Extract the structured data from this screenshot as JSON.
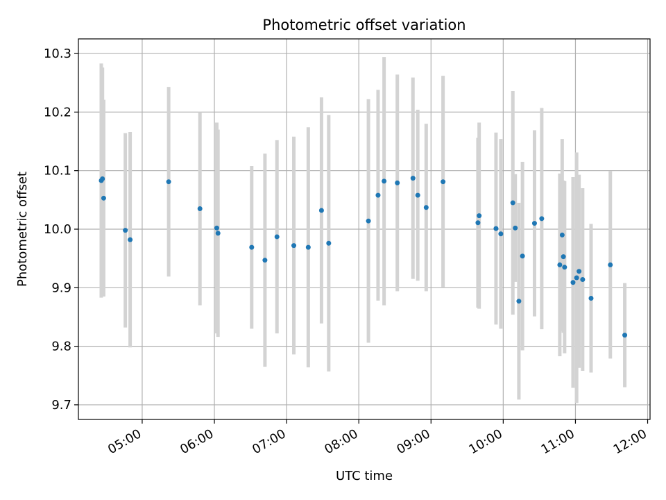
{
  "chart_data": {
    "type": "scatter",
    "title": "Photometric offset variation",
    "xlabel": "UTC time",
    "ylabel": "Photometric offset",
    "grid": true,
    "xlim": [
      "04:07",
      "12:02"
    ],
    "ylim": [
      9.675,
      10.325
    ],
    "x_ticks": [
      "05:00",
      "06:00",
      "07:00",
      "08:00",
      "09:00",
      "10:00",
      "11:00",
      "12:00"
    ],
    "y_ticks": [
      "9.7",
      "9.8",
      "9.9",
      "10.0",
      "10.1",
      "10.2",
      "10.3"
    ],
    "colors": {
      "point": "#1f77b4",
      "errorbar": "#d3d3d3",
      "grid": "#b0b0b0"
    },
    "x": [
      "04:26",
      "04:27",
      "04:28",
      "04:46",
      "04:50",
      "05:22",
      "05:48",
      "06:02",
      "06:03",
      "06:31",
      "06:42",
      "06:52",
      "07:06",
      "07:18",
      "07:29",
      "07:35",
      "08:08",
      "08:16",
      "08:21",
      "08:32",
      "08:45",
      "08:49",
      "08:56",
      "09:10",
      "09:39",
      "09:40",
      "09:54",
      "09:58",
      "10:08",
      "10:10",
      "10:13",
      "10:16",
      "10:26",
      "10:32",
      "10:47",
      "10:49",
      "10:50",
      "10:51",
      "10:58",
      "11:01",
      "11:03",
      "11:06",
      "11:13",
      "11:29",
      "11:41"
    ],
    "y": [
      10.083,
      10.086,
      10.053,
      9.998,
      9.982,
      10.081,
      10.035,
      10.002,
      9.993,
      9.969,
      9.947,
      9.987,
      9.972,
      9.969,
      10.032,
      9.976,
      10.014,
      10.058,
      10.082,
      10.079,
      10.087,
      10.058,
      10.037,
      10.081,
      10.011,
      10.023,
      10.001,
      9.992,
      10.045,
      10.002,
      9.877,
      9.954,
      10.01,
      10.018,
      9.939,
      9.99,
      9.953,
      9.935,
      9.909,
      9.917,
      9.928,
      9.914,
      9.882,
      9.939,
      9.819
    ],
    "yerr": [
      0.2,
      0.19,
      0.168,
      0.166,
      0.184,
      0.162,
      0.165,
      0.18,
      0.177,
      0.139,
      0.182,
      0.165,
      0.186,
      0.205,
      0.193,
      0.219,
      0.208,
      0.18,
      0.212,
      0.185,
      0.172,
      0.146,
      0.143,
      0.181,
      0.145,
      0.159,
      0.164,
      0.162,
      0.191,
      0.092,
      0.168,
      0.161,
      0.159,
      0.189,
      0.156,
      0.164,
      0.13,
      0.147,
      0.18,
      0.214,
      0.165,
      0.156,
      0.127,
      0.16,
      0.089
    ]
  }
}
